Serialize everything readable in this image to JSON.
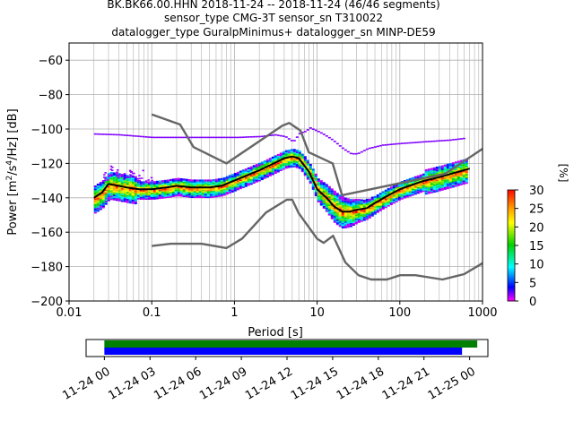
{
  "header": {
    "line1": "BK.BK66.00.HHN   2018-11-24 -- 2018-11-24  (46/46 segments)",
    "line2": "sensor_type CMG-3T sensor_sn T310022",
    "line3": "datalogger_type GuralpMinimus+ datalogger_sn MINP-DE59"
  },
  "chart_data": [
    {
      "type": "heatmap",
      "xlabel": "Period [s]",
      "ylabel": "Power [m²/s⁴/Hz] [dB]",
      "xscale": "log",
      "xlim": [
        0.01,
        1000
      ],
      "ylim": [
        -200,
        -50
      ],
      "xticks": [
        "0.01",
        "0.1",
        "1",
        "10",
        "100",
        "1000"
      ],
      "yticks": [
        "-60",
        "-80",
        "-100",
        "-120",
        "-140",
        "-160",
        "-180",
        "-200"
      ],
      "grid": true,
      "colorbar": {
        "label": "[%]",
        "range": [
          0,
          30
        ],
        "ticks": [
          "0",
          "5",
          "10",
          "15",
          "20",
          "25",
          "30"
        ]
      },
      "series": [
        {
          "role": "mode-line",
          "color": "#000000",
          "x": [
            0.02,
            0.025,
            0.03,
            0.04,
            0.05,
            0.07,
            0.1,
            0.15,
            0.2,
            0.3,
            0.5,
            0.7,
            1,
            2,
            3,
            4,
            5,
            6,
            8,
            10,
            13,
            16,
            20,
            25,
            30,
            40,
            50,
            70,
            100,
            150,
            200,
            300,
            500,
            700
          ],
          "y": [
            -140,
            -137,
            -132,
            -133,
            -134,
            -135,
            -135,
            -134,
            -133,
            -134,
            -134,
            -133,
            -130,
            -124,
            -120,
            -117,
            -116,
            -117,
            -125,
            -135,
            -140,
            -145,
            -148,
            -148,
            -147,
            -146,
            -143,
            -139,
            -135,
            -132,
            -130,
            -128,
            -125,
            -123
          ]
        },
        {
          "role": "nhnm",
          "color": "#666666",
          "x": [
            0.1,
            0.22,
            0.32,
            0.8,
            3.8,
            4.6,
            6.3,
            7.9,
            15.4,
            20,
            354.8,
            1000
          ],
          "y": [
            -91.5,
            -97.4,
            -110.5,
            -120,
            -98,
            -96.5,
            -101,
            -113.5,
            -120,
            -138.5,
            -126,
            -111.5
          ]
        },
        {
          "role": "nlnm",
          "color": "#666666",
          "x": [
            0.1,
            0.17,
            0.4,
            0.8,
            1.24,
            2.4,
            4.3,
            5,
            6,
            10,
            12,
            15.6,
            21.9,
            31.6,
            45,
            70,
            101,
            154,
            328,
            600,
            1000
          ],
          "y": [
            -168,
            -166.7,
            -166.7,
            -169.2,
            -163.7,
            -148.6,
            -141.1,
            -141.1,
            -149,
            -163.8,
            -166.2,
            -162.1,
            -177.5,
            -185,
            -187.5,
            -187.5,
            -185,
            -185,
            -187.5,
            -184.4,
            -178
          ]
        },
        {
          "role": "purple-band",
          "color": "#7b00ff",
          "x": [
            0.02,
            0.04,
            0.1,
            0.3,
            1,
            2,
            3,
            4,
            5,
            6,
            7,
            8,
            10,
            12,
            15,
            20,
            25,
            30,
            40,
            60,
            100,
            200,
            400,
            600
          ],
          "y": [
            -102.5,
            -103,
            -104.5,
            -104.5,
            -104.5,
            -104,
            -103,
            -104,
            -107,
            -102,
            -101,
            -99,
            -101,
            -103,
            -106,
            -111,
            -114,
            -114,
            -111,
            -109,
            -108,
            -107,
            -106,
            -105
          ]
        }
      ]
    },
    {
      "type": "timeline",
      "ticks": [
        "11-24 00",
        "11-24 03",
        "11-24 06",
        "11-24 09",
        "11-24 12",
        "11-24 15",
        "11-24 18",
        "11-24 21",
        "11-25 00"
      ],
      "xlim_hours": [
        -1.2,
        25.2
      ],
      "bars": [
        {
          "color": "#008000",
          "start_h": 0,
          "end_h": 24.5
        },
        {
          "color": "#0000ff",
          "start_h": 0,
          "end_h": 23.5
        }
      ]
    }
  ]
}
